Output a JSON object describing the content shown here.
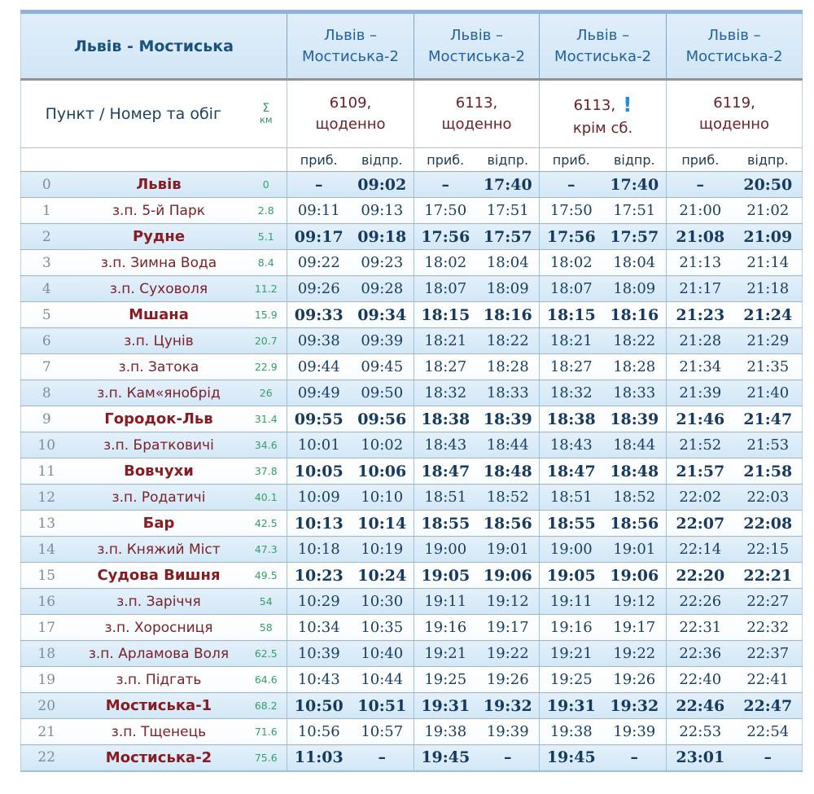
{
  "table": {
    "title": "Львів - Мостиська",
    "corner_header": "Пункт / Номер та обіг",
    "km_header": {
      "sigma": "Σ",
      "unit": "км"
    },
    "sub_headers": {
      "arrive": "приб.",
      "depart": "відпр."
    },
    "trains": [
      {
        "route": "Львів – Мостиська-2",
        "number": "6109,",
        "schedule": "щоденно"
      },
      {
        "route": "Львів – Мостиська-2",
        "number": "6113,",
        "schedule": "щоденно"
      },
      {
        "route": "Львів – Мостиська-2",
        "number": "6113,",
        "schedule": "крім сб.",
        "note_icon": "!"
      },
      {
        "route": "Львів – Мостиська-2",
        "number": "6119,",
        "schedule": "щоденно"
      }
    ],
    "colors": {
      "header_bg": "#d9eaf8",
      "title_text": "#1a527e",
      "route_text": "#2161a0",
      "train_number_text": "#6b2129",
      "station_text": "#7c2128",
      "time_text": "#1b3f63",
      "km_text": "#33a068",
      "row_number_text": "#7d8d99",
      "row_alt_bg": "#d8e9f7",
      "note_icon_color": "#1e8fe2",
      "top_border": "#8db4d4"
    },
    "rows": [
      {
        "n": "0",
        "station": "Львів",
        "km": "0",
        "major": true,
        "times": [
          "–",
          "09:02",
          "–",
          "17:40",
          "–",
          "17:40",
          "–",
          "20:50"
        ]
      },
      {
        "n": "1",
        "station": "з.п. 5-й Парк",
        "km": "2.8",
        "major": false,
        "times": [
          "09:11",
          "09:13",
          "17:50",
          "17:51",
          "17:50",
          "17:51",
          "21:00",
          "21:02"
        ]
      },
      {
        "n": "2",
        "station": "Рудне",
        "km": "5.1",
        "major": true,
        "times": [
          "09:17",
          "09:18",
          "17:56",
          "17:57",
          "17:56",
          "17:57",
          "21:08",
          "21:09"
        ]
      },
      {
        "n": "3",
        "station": "з.п. Зимна Вода",
        "km": "8.4",
        "major": false,
        "times": [
          "09:22",
          "09:23",
          "18:02",
          "18:04",
          "18:02",
          "18:04",
          "21:13",
          "21:14"
        ]
      },
      {
        "n": "4",
        "station": "з.п. Суховоля",
        "km": "11.2",
        "major": false,
        "times": [
          "09:26",
          "09:28",
          "18:07",
          "18:09",
          "18:07",
          "18:09",
          "21:17",
          "21:18"
        ]
      },
      {
        "n": "5",
        "station": "Мшана",
        "km": "15.9",
        "major": true,
        "times": [
          "09:33",
          "09:34",
          "18:15",
          "18:16",
          "18:15",
          "18:16",
          "21:23",
          "21:24"
        ]
      },
      {
        "n": "6",
        "station": "з.п. Цунів",
        "km": "20.7",
        "major": false,
        "times": [
          "09:38",
          "09:39",
          "18:21",
          "18:22",
          "18:21",
          "18:22",
          "21:28",
          "21:29"
        ]
      },
      {
        "n": "7",
        "station": "з.п. Затока",
        "km": "22.9",
        "major": false,
        "times": [
          "09:44",
          "09:45",
          "18:27",
          "18:28",
          "18:27",
          "18:28",
          "21:34",
          "21:35"
        ]
      },
      {
        "n": "8",
        "station": "з.п. Кам«янобрід",
        "km": "26",
        "major": false,
        "times": [
          "09:49",
          "09:50",
          "18:32",
          "18:33",
          "18:32",
          "18:33",
          "21:39",
          "21:40"
        ]
      },
      {
        "n": "9",
        "station": "Городок-Льв",
        "km": "31.4",
        "major": true,
        "times": [
          "09:55",
          "09:56",
          "18:38",
          "18:39",
          "18:38",
          "18:39",
          "21:46",
          "21:47"
        ]
      },
      {
        "n": "10",
        "station": "з.п. Братковичі",
        "km": "34.6",
        "major": false,
        "times": [
          "10:01",
          "10:02",
          "18:43",
          "18:44",
          "18:43",
          "18:44",
          "21:52",
          "21:53"
        ]
      },
      {
        "n": "11",
        "station": "Вовчухи",
        "km": "37.8",
        "major": true,
        "times": [
          "10:05",
          "10:06",
          "18:47",
          "18:48",
          "18:47",
          "18:48",
          "21:57",
          "21:58"
        ]
      },
      {
        "n": "12",
        "station": "з.п. Родатичі",
        "km": "40.1",
        "major": false,
        "times": [
          "10:09",
          "10:10",
          "18:51",
          "18:52",
          "18:51",
          "18:52",
          "22:02",
          "22:03"
        ]
      },
      {
        "n": "13",
        "station": "Бар",
        "km": "42.5",
        "major": true,
        "times": [
          "10:13",
          "10:14",
          "18:55",
          "18:56",
          "18:55",
          "18:56",
          "22:07",
          "22:08"
        ]
      },
      {
        "n": "14",
        "station": "з.п. Княжий Міст",
        "km": "47.3",
        "major": false,
        "times": [
          "10:18",
          "10:19",
          "19:00",
          "19:01",
          "19:00",
          "19:01",
          "22:14",
          "22:15"
        ]
      },
      {
        "n": "15",
        "station": "Судова Вишня",
        "km": "49.5",
        "major": true,
        "times": [
          "10:23",
          "10:24",
          "19:05",
          "19:06",
          "19:05",
          "19:06",
          "22:20",
          "22:21"
        ]
      },
      {
        "n": "16",
        "station": "з.п. Заріччя",
        "km": "54",
        "major": false,
        "times": [
          "10:29",
          "10:30",
          "19:11",
          "19:12",
          "19:11",
          "19:12",
          "22:26",
          "22:27"
        ]
      },
      {
        "n": "17",
        "station": "з.п. Хоросниця",
        "km": "58",
        "major": false,
        "times": [
          "10:34",
          "10:35",
          "19:16",
          "19:17",
          "19:16",
          "19:17",
          "22:31",
          "22:32"
        ]
      },
      {
        "n": "18",
        "station": "з.п. Арламова Воля",
        "km": "62.5",
        "major": false,
        "times": [
          "10:39",
          "10:40",
          "19:21",
          "19:22",
          "19:21",
          "19:22",
          "22:36",
          "22:37"
        ]
      },
      {
        "n": "19",
        "station": "з.п. Підгать",
        "km": "64.6",
        "major": false,
        "times": [
          "10:43",
          "10:44",
          "19:25",
          "19:26",
          "19:25",
          "19:26",
          "22:40",
          "22:41"
        ]
      },
      {
        "n": "20",
        "station": "Мостиська-1",
        "km": "68.2",
        "major": true,
        "times": [
          "10:50",
          "10:51",
          "19:31",
          "19:32",
          "19:31",
          "19:32",
          "22:46",
          "22:47"
        ]
      },
      {
        "n": "21",
        "station": "з.п. Тщенець",
        "km": "71.6",
        "major": false,
        "times": [
          "10:56",
          "10:57",
          "19:38",
          "19:39",
          "19:38",
          "19:39",
          "22:53",
          "22:54"
        ]
      },
      {
        "n": "22",
        "station": "Мостиська-2",
        "km": "75.6",
        "major": true,
        "times": [
          "11:03",
          "–",
          "19:45",
          "–",
          "19:45",
          "–",
          "23:01",
          "–"
        ]
      }
    ]
  }
}
